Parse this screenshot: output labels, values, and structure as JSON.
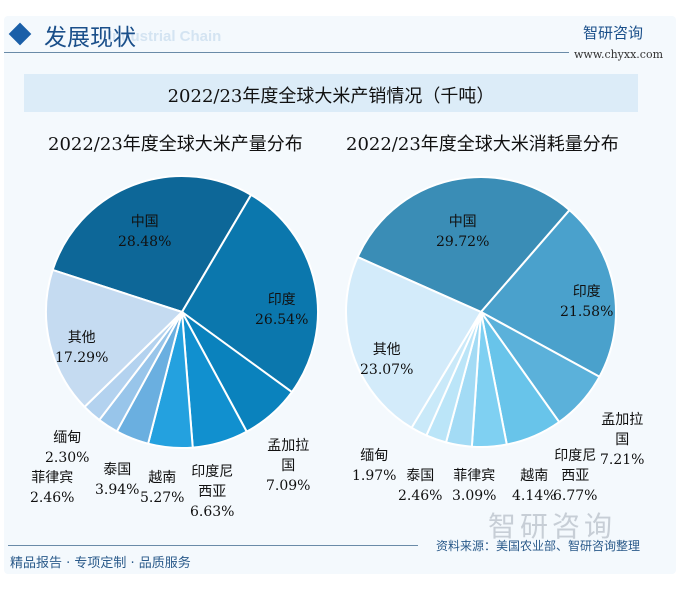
{
  "header": {
    "title": "发展现状",
    "subtitle": "Industrial Chain",
    "brand": "智研咨询",
    "url": "www.chyxx.com"
  },
  "banner_title": "2022/23年度全球大米产销情况（千吨）",
  "chart_data": [
    {
      "type": "pie",
      "title": "2022/23年度全球大米产量分布",
      "slices": [
        {
          "label": "中国",
          "value": 28.48,
          "color": "#0d6798"
        },
        {
          "label": "印度",
          "value": 26.54,
          "color": "#0b77ad"
        },
        {
          "label": "孟加拉国",
          "value": 7.09,
          "color": "#0a82bd"
        },
        {
          "label": "印度尼西亚",
          "value": 6.63,
          "color": "#1190cf"
        },
        {
          "label": "越南",
          "value": 5.27,
          "color": "#24a1df"
        },
        {
          "label": "泰国",
          "value": 3.94,
          "color": "#6aafe0"
        },
        {
          "label": "菲律宾",
          "value": 2.46,
          "color": "#98c5ea"
        },
        {
          "label": "缅甸",
          "value": 2.3,
          "color": "#b3d2ef"
        },
        {
          "label": "其他",
          "value": 17.29,
          "color": "#c5dbf1"
        }
      ],
      "display": [
        "28.48%",
        "26.54%",
        "7.09%",
        "6.63%",
        "5.27%",
        "3.94%",
        "2.46%",
        "2.30%",
        "17.29%"
      ]
    },
    {
      "type": "pie",
      "title": "2022/23年度全球大米消耗量分布",
      "slices": [
        {
          "label": "中国",
          "value": 29.72,
          "color": "#3a8db6"
        },
        {
          "label": "印度",
          "value": 21.58,
          "color": "#4aa1cc"
        },
        {
          "label": "孟加拉国",
          "value": 7.21,
          "color": "#5bb1da"
        },
        {
          "label": "印度尼西亚",
          "value": 6.77,
          "color": "#68c4ea"
        },
        {
          "label": "越南",
          "value": 4.14,
          "color": "#7fd0f2"
        },
        {
          "label": "菲律宾",
          "value": 3.09,
          "color": "#a3dbf5"
        },
        {
          "label": "泰国",
          "value": 2.46,
          "color": "#bbe5f8"
        },
        {
          "label": "缅甸",
          "value": 1.97,
          "color": "#c9e9f9"
        },
        {
          "label": "其他",
          "value": 23.07,
          "color": "#d3ebfa"
        }
      ],
      "display": [
        "29.72%",
        "21.58%",
        "7.21%",
        "6.77%",
        "4.14%",
        "3.09%",
        "2.46%",
        "1.97%",
        "23.07%"
      ]
    }
  ],
  "label_names": {
    "china": "中国",
    "india": "印度",
    "bangladesh1": "孟加拉",
    "bangladesh2": "国",
    "indonesia1": "印度尼",
    "indonesia2": "西亚",
    "vietnam": "越南",
    "thailand": "泰国",
    "philippines": "菲律宾",
    "myanmar": "缅甸",
    "other": "其他"
  },
  "footer": {
    "left": "精品报告 · 专项定制 · 品质服务",
    "source": "资料来源：美国农业部、智研咨询整理",
    "watermark": "智研咨询"
  }
}
